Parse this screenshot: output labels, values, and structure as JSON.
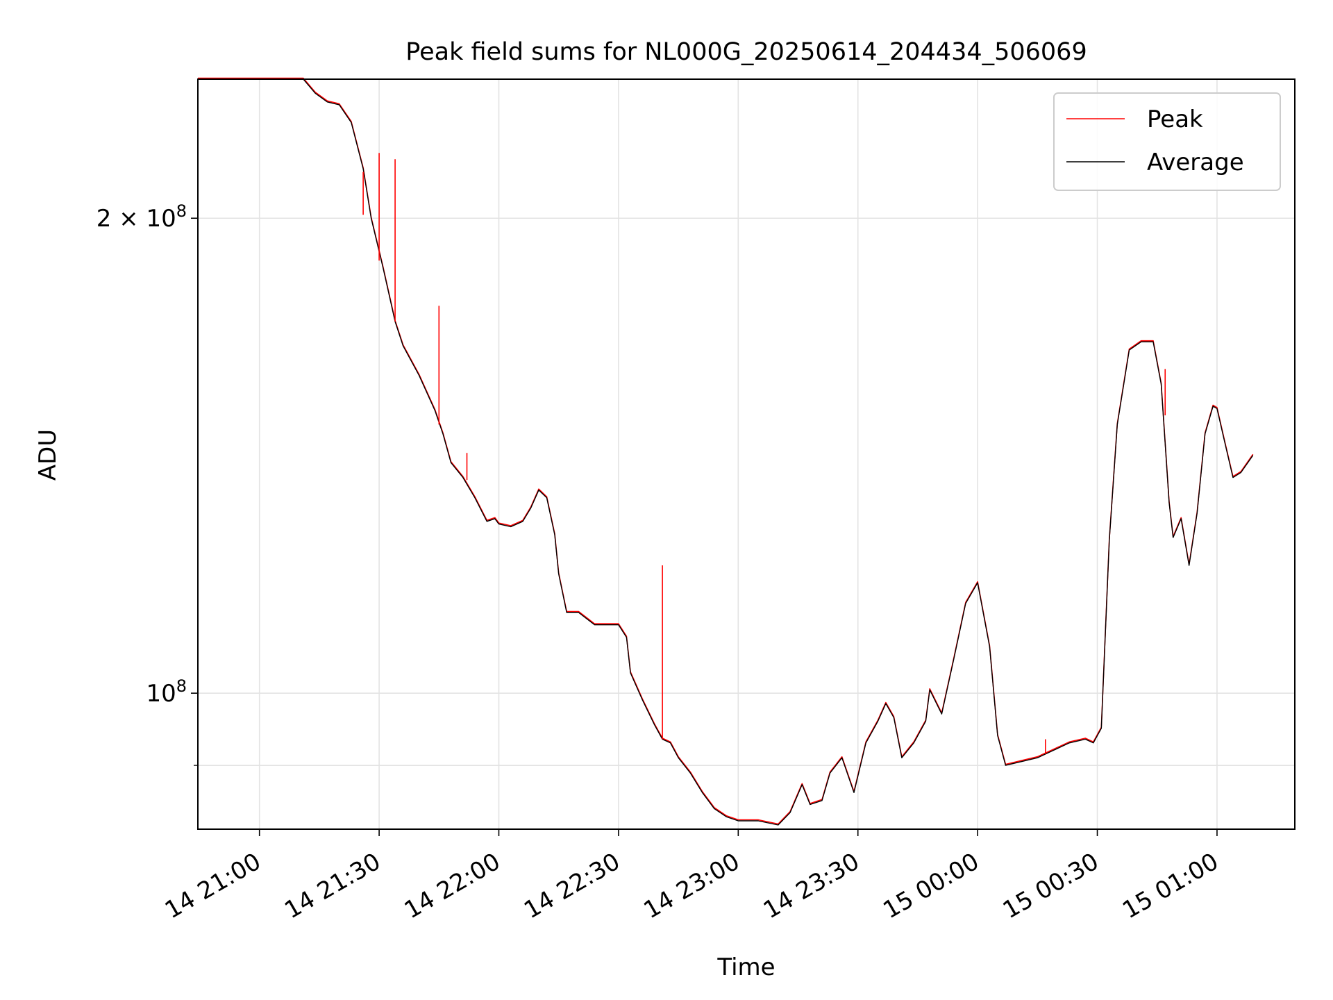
{
  "chart_data": {
    "type": "line",
    "title": "Peak field sums for NL000G_20250614_204434_506069",
    "xlabel": "Time",
    "ylabel": "ADU",
    "yscale": "log",
    "xlim": [
      "2025-06-14T20:44:34",
      "2025-06-15T01:19:30"
    ],
    "ylim": [
      82000000,
      245000000
    ],
    "grid": true,
    "legend_position": "top-right",
    "x_ticks": [
      {
        "t": "2025-06-14T21:00:00",
        "label": "14 21:00"
      },
      {
        "t": "2025-06-14T21:30:00",
        "label": "14 21:30"
      },
      {
        "t": "2025-06-14T22:00:00",
        "label": "14 22:00"
      },
      {
        "t": "2025-06-14T22:30:00",
        "label": "14 22:30"
      },
      {
        "t": "2025-06-14T23:00:00",
        "label": "14 23:00"
      },
      {
        "t": "2025-06-14T23:30:00",
        "label": "14 23:30"
      },
      {
        "t": "2025-06-15T00:00:00",
        "label": "15 00:00"
      },
      {
        "t": "2025-06-15T00:30:00",
        "label": "15 00:30"
      },
      {
        "t": "2025-06-15T01:00:00",
        "label": "15 01:00"
      }
    ],
    "y_ticks": [
      {
        "value": 200000000,
        "mantissa": "2",
        "times": "×",
        "base": "10",
        "exp": "8"
      },
      {
        "value": 100000000,
        "mantissa": "",
        "times": "",
        "base": "10",
        "exp": "8"
      }
    ],
    "y_minor_ticks": [
      90000000
    ],
    "series": [
      {
        "name": "Average",
        "color": "#000000",
        "points": [
          [
            "2025-06-14T20:44:34",
            245000000
          ],
          [
            "2025-06-14T21:05:00",
            245000000
          ],
          [
            "2025-06-14T21:11:00",
            245000000
          ],
          [
            "2025-06-14T21:14:00",
            240000000
          ],
          [
            "2025-06-14T21:17:00",
            237000000
          ],
          [
            "2025-06-14T21:20:00",
            236000000
          ],
          [
            "2025-06-14T21:23:00",
            230000000
          ],
          [
            "2025-06-14T21:26:00",
            215000000
          ],
          [
            "2025-06-14T21:28:00",
            200000000
          ],
          [
            "2025-06-14T21:31:00",
            186000000
          ],
          [
            "2025-06-14T21:34:00",
            172000000
          ],
          [
            "2025-06-14T21:36:00",
            166000000
          ],
          [
            "2025-06-14T21:40:00",
            159000000
          ],
          [
            "2025-06-14T21:44:00",
            151000000
          ],
          [
            "2025-06-14T21:46:00",
            146000000
          ],
          [
            "2025-06-14T21:48:00",
            140000000
          ],
          [
            "2025-06-14T21:51:00",
            137000000
          ],
          [
            "2025-06-14T21:54:00",
            133000000
          ],
          [
            "2025-06-14T21:57:00",
            128500000
          ],
          [
            "2025-06-14T21:59:00",
            129000000
          ],
          [
            "2025-06-14T22:00:00",
            128000000
          ],
          [
            "2025-06-14T22:03:00",
            127500000
          ],
          [
            "2025-06-14T22:06:00",
            128500000
          ],
          [
            "2025-06-14T22:08:00",
            131000000
          ],
          [
            "2025-06-14T22:10:00",
            134500000
          ],
          [
            "2025-06-14T22:12:00",
            133000000
          ],
          [
            "2025-06-14T22:14:00",
            126000000
          ],
          [
            "2025-06-14T22:15:00",
            119000000
          ],
          [
            "2025-06-14T22:17:00",
            112500000
          ],
          [
            "2025-06-14T22:20:00",
            112500000
          ],
          [
            "2025-06-14T22:24:00",
            110500000
          ],
          [
            "2025-06-14T22:27:00",
            110500000
          ],
          [
            "2025-06-14T22:30:00",
            110500000
          ],
          [
            "2025-06-14T22:32:00",
            108500000
          ],
          [
            "2025-06-14T22:33:00",
            103000000
          ],
          [
            "2025-06-14T22:36:00",
            99000000
          ],
          [
            "2025-06-14T22:39:00",
            95500000
          ],
          [
            "2025-06-14T22:41:00",
            93500000
          ],
          [
            "2025-06-14T22:43:00",
            93000000
          ],
          [
            "2025-06-14T22:45:00",
            91000000
          ],
          [
            "2025-06-14T22:48:00",
            89000000
          ],
          [
            "2025-06-14T22:51:00",
            86500000
          ],
          [
            "2025-06-14T22:54:00",
            84500000
          ],
          [
            "2025-06-14T22:57:00",
            83500000
          ],
          [
            "2025-06-14T23:00:00",
            83000000
          ],
          [
            "2025-06-14T23:05:00",
            83000000
          ],
          [
            "2025-06-14T23:10:00",
            82500000
          ],
          [
            "2025-06-14T23:13:00",
            84000000
          ],
          [
            "2025-06-14T23:16:00",
            87500000
          ],
          [
            "2025-06-14T23:18:00",
            85000000
          ],
          [
            "2025-06-14T23:21:00",
            85500000
          ],
          [
            "2025-06-14T23:23:00",
            89000000
          ],
          [
            "2025-06-14T23:26:00",
            91000000
          ],
          [
            "2025-06-14T23:29:00",
            86500000
          ],
          [
            "2025-06-14T23:32:00",
            93000000
          ],
          [
            "2025-06-14T23:35:00",
            96000000
          ],
          [
            "2025-06-14T23:37:00",
            98500000
          ],
          [
            "2025-06-14T23:39:00",
            96500000
          ],
          [
            "2025-06-14T23:41:00",
            91000000
          ],
          [
            "2025-06-14T23:44:00",
            93000000
          ],
          [
            "2025-06-14T23:47:00",
            96000000
          ],
          [
            "2025-06-14T23:48:00",
            100500000
          ],
          [
            "2025-06-14T23:51:00",
            97000000
          ],
          [
            "2025-06-14T23:54:00",
            105000000
          ],
          [
            "2025-06-14T23:57:00",
            114000000
          ],
          [
            "2025-06-15T00:00:00",
            117500000
          ],
          [
            "2025-06-15T00:03:00",
            107000000
          ],
          [
            "2025-06-15T00:05:00",
            94000000
          ],
          [
            "2025-06-15T00:07:00",
            90000000
          ],
          [
            "2025-06-15T00:11:00",
            90500000
          ],
          [
            "2025-06-15T00:15:00",
            91000000
          ],
          [
            "2025-06-15T00:19:00",
            92000000
          ],
          [
            "2025-06-15T00:23:00",
            93000000
          ],
          [
            "2025-06-15T00:27:00",
            93500000
          ],
          [
            "2025-06-15T00:29:00",
            93000000
          ],
          [
            "2025-06-15T00:31:00",
            95000000
          ],
          [
            "2025-06-15T00:33:00",
            125000000
          ],
          [
            "2025-06-15T00:35:00",
            148000000
          ],
          [
            "2025-06-15T00:38:00",
            165000000
          ],
          [
            "2025-06-15T00:41:00",
            167000000
          ],
          [
            "2025-06-15T00:44:00",
            167000000
          ],
          [
            "2025-06-15T00:46:00",
            157000000
          ],
          [
            "2025-06-15T00:48:00",
            132000000
          ],
          [
            "2025-06-15T00:49:00",
            125500000
          ],
          [
            "2025-06-15T00:51:00",
            129000000
          ],
          [
            "2025-06-15T00:53:00",
            120500000
          ],
          [
            "2025-06-15T00:55:00",
            130000000
          ],
          [
            "2025-06-15T00:57:00",
            146000000
          ],
          [
            "2025-06-15T00:59:00",
            152000000
          ],
          [
            "2025-06-15T01:00:00",
            151500000
          ],
          [
            "2025-06-15T01:02:00",
            144000000
          ],
          [
            "2025-06-15T01:04:00",
            137000000
          ],
          [
            "2025-06-15T01:06:00",
            138000000
          ],
          [
            "2025-06-15T01:09:00",
            141500000
          ]
        ]
      },
      {
        "name": "Peak",
        "color": "#ff0000",
        "spikes": [
          [
            "2025-06-14T21:26:00",
            201000000,
            214000000
          ],
          [
            "2025-06-14T21:30:00",
            188000000,
            220000000
          ],
          [
            "2025-06-14T21:34:00",
            172000000,
            218000000
          ],
          [
            "2025-06-14T21:45:00",
            148000000,
            176000000
          ],
          [
            "2025-06-14T21:52:00",
            136500000,
            142000000
          ],
          [
            "2025-06-14T22:41:00",
            93500000,
            120500000
          ],
          [
            "2025-06-15T00:17:00",
            91500000,
            93500000
          ],
          [
            "2025-06-15T00:47:00",
            150000000,
            160500000
          ]
        ]
      }
    ]
  }
}
